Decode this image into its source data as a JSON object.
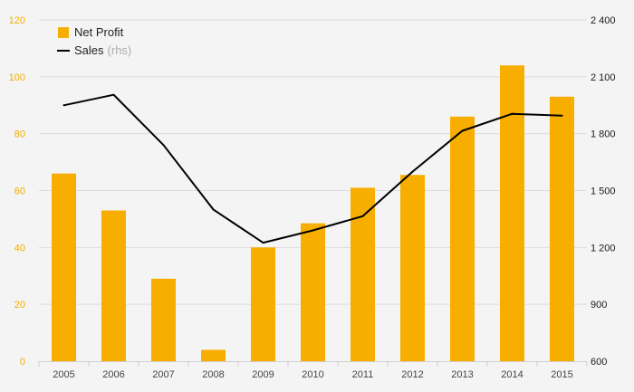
{
  "chart_data": {
    "type": "bar",
    "categories": [
      "2005",
      "2006",
      "2007",
      "2008",
      "2009",
      "2010",
      "2011",
      "2012",
      "2013",
      "2014",
      "2015"
    ],
    "series": [
      {
        "name": "Net Profit",
        "type": "bar",
        "axis": "left",
        "color": "#f7ae00",
        "values": [
          66,
          53,
          29,
          4,
          40,
          48.5,
          61,
          65.5,
          86,
          104,
          93
        ]
      },
      {
        "name": "Sales",
        "name_suffix": "(rhs)",
        "type": "line",
        "axis": "right",
        "color": "#000000",
        "values": [
          1950,
          2005,
          1740,
          1400,
          1225,
          1290,
          1365,
          1600,
          1815,
          1905,
          1895
        ]
      }
    ],
    "y_left": {
      "ylim": [
        0,
        120
      ],
      "ticks": [
        0,
        20,
        40,
        60,
        80,
        100,
        120
      ],
      "tick_labels": [
        "0",
        "20",
        "40",
        "60",
        "80",
        "100",
        "120"
      ],
      "color": "#f4ad00"
    },
    "y_right": {
      "ylim": [
        600,
        2400
      ],
      "ticks": [
        600,
        900,
        1200,
        1500,
        1800,
        2100,
        2400
      ],
      "tick_labels": [
        "600",
        "900",
        "1 200",
        "1 500",
        "1 800",
        "2 100",
        "2 400"
      ],
      "color": "#1a1a1a"
    },
    "grid": true,
    "legend_position": "top-left"
  }
}
